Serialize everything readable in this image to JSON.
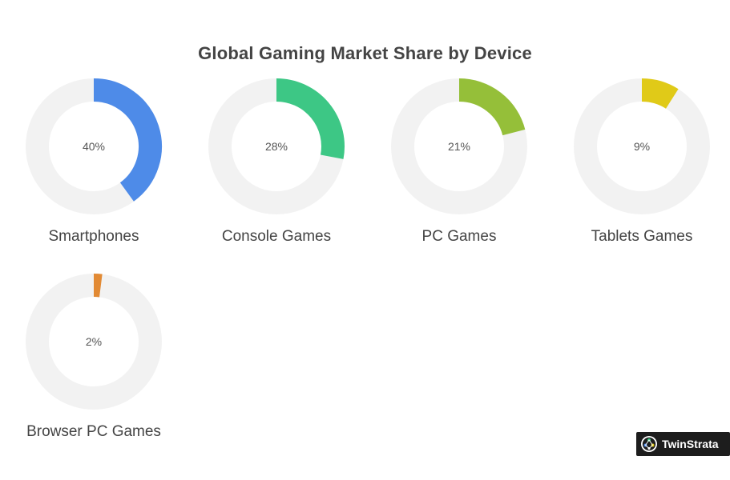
{
  "chart_data": {
    "type": "pie",
    "variant": "donut-small-multiples",
    "title": "Global Gaming Market Share by Device",
    "unit": "%",
    "items": [
      {
        "label": "Smartphones",
        "value": 40,
        "display": "40%",
        "color": "#4e8be8"
      },
      {
        "label": "Console Games",
        "value": 28,
        "display": "28%",
        "color": "#3dc785"
      },
      {
        "label": "PC Games",
        "value": 21,
        "display": "21%",
        "color": "#95bf39"
      },
      {
        "label": "Tablets Games",
        "value": 9,
        "display": "9%",
        "color": "#e0ca18"
      },
      {
        "label": "Browser PC Games",
        "value": 2,
        "display": "2%",
        "color": "#e28a34"
      }
    ],
    "track_color": "#f2f2f2",
    "value_text_color": "#555555",
    "label_text_color": "#444444"
  },
  "branding": {
    "name": "TwinStrata",
    "icon": "twinstrata-logo-icon",
    "background_color": "#1d1d1d"
  }
}
